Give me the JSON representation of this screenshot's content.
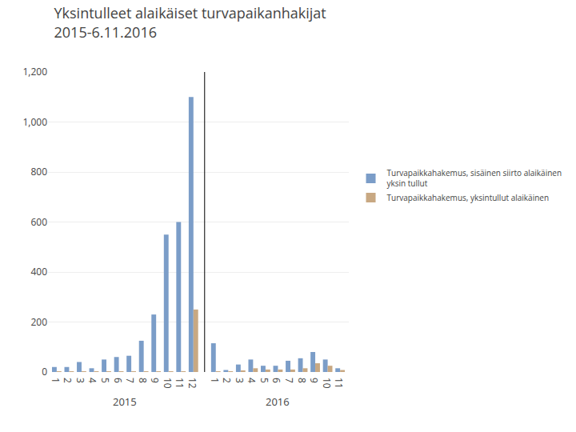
{
  "chart_data": {
    "type": "bar",
    "title": "Yksintulleet alaikäiset turvapaikanhakijat\n2015-6.11.2016",
    "categories": [
      "1",
      "2",
      "3",
      "4",
      "5",
      "6",
      "7",
      "8",
      "9",
      "10",
      "11",
      "12",
      "1",
      "2",
      "3",
      "4",
      "5",
      "6",
      "7",
      "8",
      "9",
      "10",
      "11"
    ],
    "series": [
      {
        "name": "Turvapaikkahakemus, sisäinen siirto alaikäinen\nyksin tullut",
        "color": "#7B9DC8",
        "values": [
          20,
          20,
          40,
          15,
          50,
          60,
          65,
          125,
          230,
          550,
          600,
          1100,
          115,
          8,
          30,
          50,
          25,
          25,
          45,
          55,
          80,
          50,
          15
        ]
      },
      {
        "name": "Turvapaikkahakemus, yksintullut alaikäinen",
        "color": "#C8A882",
        "values": [
          3,
          3,
          3,
          3,
          3,
          3,
          3,
          3,
          3,
          3,
          3,
          250,
          3,
          2,
          5,
          15,
          10,
          10,
          10,
          15,
          35,
          25,
          8
        ]
      }
    ],
    "annotations": [
      "2015",
      "2016"
    ],
    "ylim": [
      0,
      1200
    ],
    "yticks": [
      0,
      200,
      400,
      600,
      800,
      {
        "value": 1000,
        "label": "1,000"
      },
      {
        "value": 1200,
        "label": "1,200"
      }
    ],
    "grid": true,
    "legend": "right"
  }
}
